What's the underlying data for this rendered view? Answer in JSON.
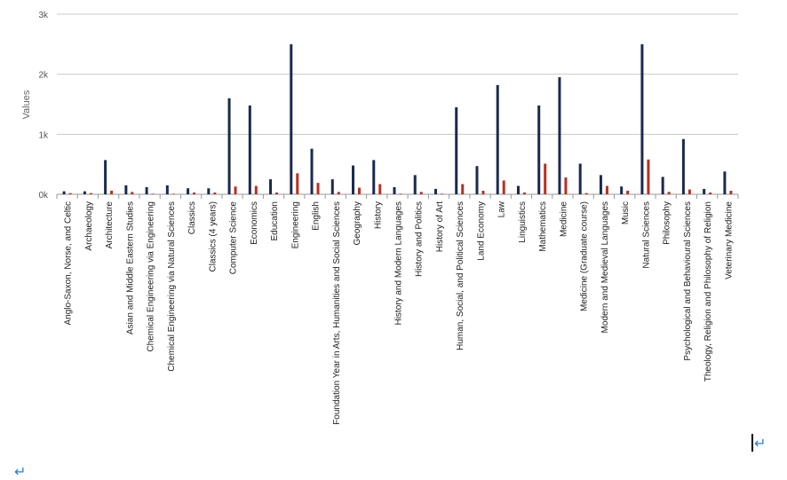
{
  "marks": {
    "return_symbol": "↵"
  },
  "chart_data": {
    "type": "bar",
    "ylabel": "Values",
    "xlabel": "",
    "ylim": [
      0,
      3000
    ],
    "y_ticks": [
      {
        "value": 0,
        "label": "0k"
      },
      {
        "value": 1000,
        "label": "1k"
      },
      {
        "value": 2000,
        "label": "2k"
      },
      {
        "value": 3000,
        "label": "3k"
      }
    ],
    "grid": true,
    "legend": "none",
    "categories": [
      "Anglo-Saxon, Norse, and Celtic",
      "Archaeology",
      "Architecture",
      "Asian and Middle Eastern Studies",
      "Chemical Engineering via Engineering",
      "Chemical Engineering via Natural Sciences",
      "Classics",
      "Classics (4 years)",
      "Computer Science",
      "Economics",
      "Education",
      "Engineering",
      "English",
      "Foundation Year in Arts, Humanities and Social Sciences",
      "Geography",
      "History",
      "History and Modern Languages",
      "History and Politics",
      "History of Art",
      "Human, Social, and Political Sciences",
      "Land Economy",
      "Law",
      "Linguistics",
      "Mathematics",
      "Medicine",
      "Medicine (Graduate course)",
      "Modern and Medieval Languages",
      "Music",
      "Natural Sciences",
      "Philosophy",
      "Psychological and Behavioural Sciences",
      "Theology, Religion and Philosophy of Religion",
      "Veterinary Medicine"
    ],
    "series": [
      {
        "color": "#1a2a4f",
        "values": [
          50,
          50,
          570,
          150,
          120,
          150,
          100,
          100,
          1600,
          1480,
          250,
          2500,
          760,
          250,
          480,
          570,
          120,
          320,
          90,
          1450,
          470,
          1820,
          140,
          1480,
          1950,
          510,
          320,
          130,
          2500,
          290,
          920,
          90,
          380
        ]
      },
      {
        "color": "#b83020",
        "values": [
          20,
          20,
          60,
          40,
          10,
          10,
          30,
          30,
          130,
          140,
          30,
          350,
          190,
          40,
          110,
          170,
          10,
          40,
          10,
          170,
          60,
          230,
          30,
          510,
          280,
          20,
          140,
          60,
          580,
          40,
          80,
          30,
          60
        ]
      }
    ]
  }
}
